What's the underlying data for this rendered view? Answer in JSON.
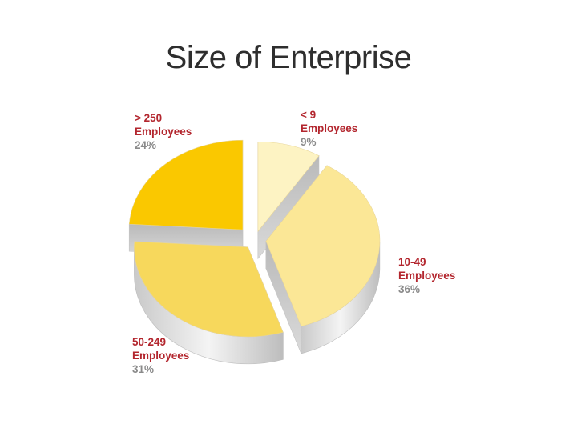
{
  "chart_data": {
    "type": "pie",
    "title": "Size of Enterprise",
    "start_angle_deg": 270,
    "slices": [
      {
        "line1": "< 9",
        "line2": "Employees",
        "value": 9,
        "label": "9%",
        "color": "#fdf3c3",
        "explode": 14
      },
      {
        "line1": "10-49",
        "line2": "Employees",
        "value": 36,
        "label": "36%",
        "color": "#fbe796",
        "explode": 14
      },
      {
        "line1": "50-249",
        "line2": "Employees",
        "value": 31,
        "label": "31%",
        "color": "#f7d85c",
        "explode": 14
      },
      {
        "line1": "> 250",
        "line2": "Employees",
        "value": 24,
        "label": "24%",
        "color": "#fac800",
        "explode": 22
      }
    ]
  }
}
